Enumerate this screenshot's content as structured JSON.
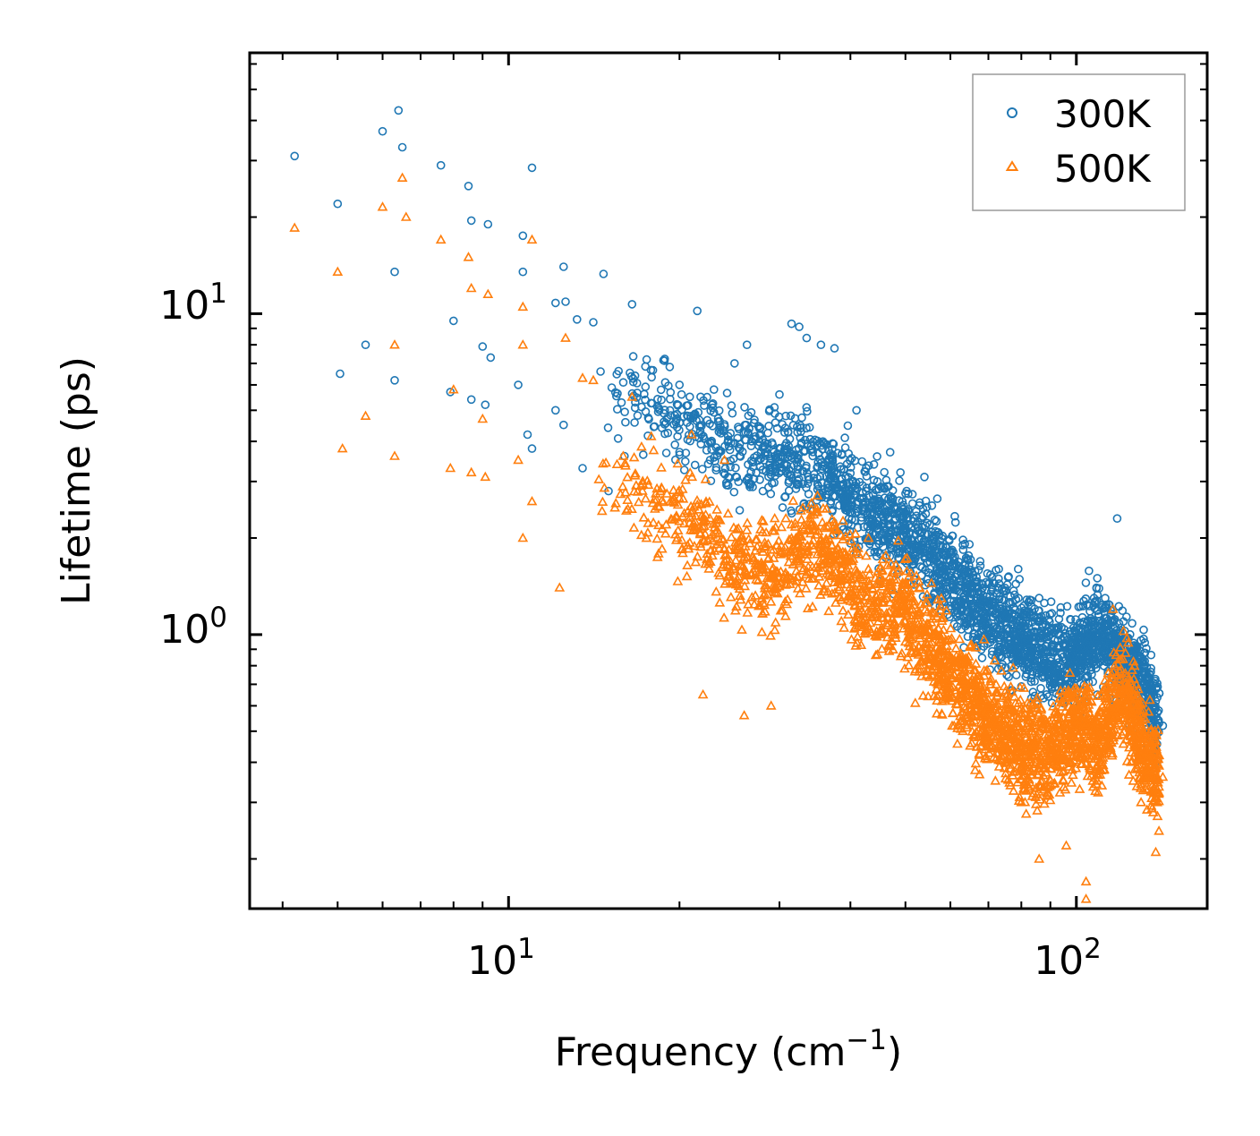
{
  "chart_data": {
    "type": "scatter",
    "title": "",
    "xlabel": "Frequency (cm",
    "xlabel_sup": "−1",
    "xlabel_close": ")",
    "ylabel": "Lifetime (ps)",
    "xscale": "log",
    "yscale": "log",
    "xlim": [
      3.5,
      170
    ],
    "ylim": [
      0.14,
      65
    ],
    "x_major_ticks": [
      {
        "value": 10,
        "base": "10",
        "exp": "1"
      },
      {
        "value": 100,
        "base": "10",
        "exp": "2"
      }
    ],
    "y_major_ticks": [
      {
        "value": 1,
        "base": "10",
        "exp": "0"
      },
      {
        "value": 10,
        "base": "10",
        "exp": "1"
      }
    ],
    "legend": {
      "position": "top-right"
    },
    "series": [
      {
        "name": "300K",
        "marker": "circle",
        "color": "#1f77b4",
        "trend": [
          [
            14,
            7.0
          ],
          [
            20,
            4.6
          ],
          [
            25,
            3.8
          ],
          [
            33,
            3.5
          ],
          [
            42,
            2.5
          ],
          [
            50,
            2.1
          ],
          [
            60,
            1.5
          ],
          [
            70,
            1.15
          ],
          [
            80,
            0.95
          ],
          [
            90,
            0.85
          ],
          [
            100,
            0.85
          ],
          [
            110,
            1.05
          ],
          [
            130,
            0.7
          ],
          [
            140,
            0.55
          ]
        ],
        "points": [
          [
            4.2,
            31
          ],
          [
            5.0,
            22
          ],
          [
            5.6,
            8
          ],
          [
            5.05,
            6.5
          ],
          [
            6.0,
            37
          ],
          [
            6.4,
            43
          ],
          [
            6.5,
            33
          ],
          [
            6.3,
            13.5
          ],
          [
            6.3,
            6.2
          ],
          [
            7.6,
            29
          ],
          [
            8.5,
            25
          ],
          [
            8.6,
            19.5
          ],
          [
            9.2,
            19
          ],
          [
            11,
            28.5
          ],
          [
            10.6,
            17.5
          ],
          [
            10.6,
            13.5
          ],
          [
            8.0,
            9.5
          ],
          [
            9.0,
            7.9
          ],
          [
            9.3,
            7.3
          ],
          [
            7.9,
            5.7
          ],
          [
            8.6,
            5.4
          ],
          [
            9.1,
            5.2
          ],
          [
            12.5,
            14
          ],
          [
            14.7,
            13.3
          ],
          [
            12.1,
            10.8
          ],
          [
            12.6,
            10.9
          ],
          [
            16.5,
            10.7
          ],
          [
            21.5,
            10.2
          ],
          [
            13.2,
            9.6
          ],
          [
            14.1,
            9.4
          ],
          [
            26.3,
            8.0
          ],
          [
            31.5,
            9.3
          ],
          [
            32.5,
            9.1
          ],
          [
            33.5,
            8.4
          ],
          [
            35.5,
            8.0
          ],
          [
            37.5,
            7.8
          ],
          [
            10.4,
            6.0
          ],
          [
            12.1,
            5.0
          ],
          [
            10.8,
            4.2
          ],
          [
            11.0,
            3.8
          ],
          [
            12.5,
            4.5
          ],
          [
            13.5,
            3.3
          ],
          [
            15,
            2.8
          ],
          [
            16.0,
            3.6
          ],
          [
            20,
            6.0
          ],
          [
            23,
            5.8
          ],
          [
            30,
            5.6
          ],
          [
            25,
            7.0
          ],
          [
            41,
            5.0
          ],
          [
            47,
            3.7
          ],
          [
            49,
            3.2
          ],
          [
            54,
            3.1
          ],
          [
            73,
            1.6
          ],
          [
            79,
            1.6
          ],
          [
            86,
            1.3
          ],
          [
            118,
            2.3
          ],
          [
            138,
            0.62
          ],
          [
            142,
            0.52
          ]
        ]
      },
      {
        "name": "500K",
        "marker": "triangle",
        "color": "#ff7f0e",
        "trend": [
          [
            14,
            3.4
          ],
          [
            20,
            2.4
          ],
          [
            25,
            1.7
          ],
          [
            30,
            1.5
          ],
          [
            35,
            1.95
          ],
          [
            42,
            1.3
          ],
          [
            50,
            1.15
          ],
          [
            60,
            0.75
          ],
          [
            70,
            0.55
          ],
          [
            80,
            0.45
          ],
          [
            90,
            0.42
          ],
          [
            100,
            0.55
          ],
          [
            110,
            0.45
          ],
          [
            120,
            0.7
          ],
          [
            130,
            0.45
          ],
          [
            140,
            0.35
          ]
        ],
        "points": [
          [
            4.2,
            18.5
          ],
          [
            5.0,
            13.5
          ],
          [
            5.1,
            3.8
          ],
          [
            5.6,
            4.8
          ],
          [
            6.0,
            21.5
          ],
          [
            6.3,
            8.0
          ],
          [
            6.5,
            26.5
          ],
          [
            6.6,
            20
          ],
          [
            6.3,
            3.6
          ],
          [
            7.6,
            17
          ],
          [
            8.5,
            15
          ],
          [
            8.6,
            12
          ],
          [
            9.2,
            11.5
          ],
          [
            11,
            17
          ],
          [
            10.6,
            10.5
          ],
          [
            10.6,
            8.0
          ],
          [
            8.0,
            5.8
          ],
          [
            7.9,
            3.3
          ],
          [
            8.6,
            3.2
          ],
          [
            9.1,
            3.1
          ],
          [
            9.0,
            4.7
          ],
          [
            10.4,
            3.5
          ],
          [
            10.6,
            2.0
          ],
          [
            11.0,
            2.6
          ],
          [
            12.3,
            1.4
          ],
          [
            12.6,
            8.4
          ],
          [
            13.5,
            6.3
          ],
          [
            14.1,
            6.2
          ],
          [
            16.5,
            5.5
          ],
          [
            21,
            4.2
          ],
          [
            24,
            3.5
          ],
          [
            26,
            0.56
          ],
          [
            22,
            0.65
          ],
          [
            29,
            0.6
          ],
          [
            31.5,
            2.2
          ],
          [
            34,
            2.3
          ],
          [
            41,
            1.1
          ],
          [
            47,
            0.92
          ],
          [
            50,
            0.95
          ],
          [
            53,
            0.78
          ],
          [
            58,
            0.62
          ],
          [
            65,
            0.45
          ],
          [
            72,
            0.35
          ],
          [
            80,
            0.3
          ],
          [
            86,
            0.2
          ],
          [
            96,
            0.22
          ],
          [
            104,
            0.17
          ],
          [
            104,
            0.15
          ],
          [
            116,
            1.2
          ],
          [
            118,
            0.75
          ],
          [
            130,
            0.3
          ],
          [
            138,
            0.21
          ],
          [
            142,
            0.36
          ]
        ]
      }
    ]
  }
}
